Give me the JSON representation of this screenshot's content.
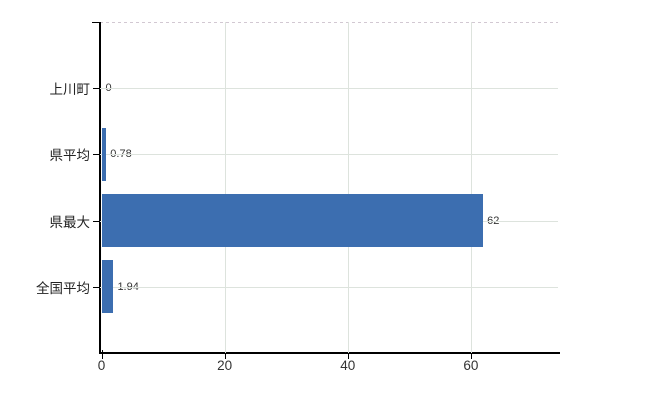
{
  "chart_data": {
    "type": "bar",
    "orientation": "horizontal",
    "title": "",
    "xlabel": "",
    "ylabel": "",
    "categories": [
      "上川町",
      "県平均",
      "県最大",
      "全国平均"
    ],
    "values": [
      0,
      0.78,
      62,
      1.94
    ],
    "value_labels": [
      "0",
      "0.78",
      "62",
      "1.94"
    ],
    "x_ticks": [
      0,
      20,
      40,
      60
    ],
    "x_tick_labels": [
      "0",
      "20",
      "40",
      "60"
    ],
    "xlim": [
      0,
      74.4
    ],
    "grid": true,
    "legend": false,
    "bar_color": "#3c6eb0",
    "gridline_color": "#dde3dd",
    "axis_color": "#000000",
    "text_color": "#333333",
    "top_border_style": "dashed",
    "background_color": "#ffffff"
  }
}
